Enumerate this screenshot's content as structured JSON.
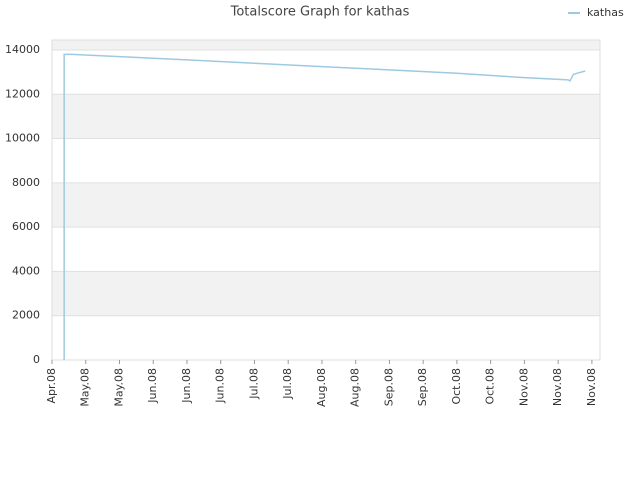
{
  "chart_data": {
    "type": "line",
    "title": "Totalscore Graph for kathas",
    "xlim": [
      0,
      16.24
    ],
    "xticks": [
      {
        "value": 0,
        "label": "Apr.08"
      },
      {
        "value": 1,
        "label": "May.08"
      },
      {
        "value": 2,
        "label": "May.08"
      },
      {
        "value": 3,
        "label": "Jun.08"
      },
      {
        "value": 4,
        "label": "Jun.08"
      },
      {
        "value": 5,
        "label": "Jun.08"
      },
      {
        "value": 6,
        "label": "Jul.08"
      },
      {
        "value": 7,
        "label": "Jul.08"
      },
      {
        "value": 8,
        "label": "Aug.08"
      },
      {
        "value": 9,
        "label": "Aug.08"
      },
      {
        "value": 10,
        "label": "Sep.08"
      },
      {
        "value": 11,
        "label": "Sep.08"
      },
      {
        "value": 12,
        "label": "Oct.08"
      },
      {
        "value": 13,
        "label": "Oct.08"
      },
      {
        "value": 14,
        "label": "Nov.08"
      },
      {
        "value": 15,
        "label": "Nov.08"
      },
      {
        "value": 16,
        "label": "Nov.08"
      }
    ],
    "ylim": [
      0,
      14450
    ],
    "yticks": [
      0,
      2000,
      4000,
      6000,
      8000,
      10000,
      12000,
      14000
    ],
    "grid": true,
    "legend": "top-right",
    "series": [
      {
        "name": "kathas",
        "color": "#9ecae1",
        "x": [
          0.36,
          0.36,
          0.6,
          2,
          4,
          6,
          8,
          10,
          12,
          14,
          15.3,
          15.35,
          15.45,
          15.8
        ],
        "values": [
          0,
          13800,
          13800,
          13700,
          13550,
          13400,
          13250,
          13100,
          12950,
          12750,
          12650,
          12600,
          12900,
          13050
        ]
      }
    ]
  }
}
